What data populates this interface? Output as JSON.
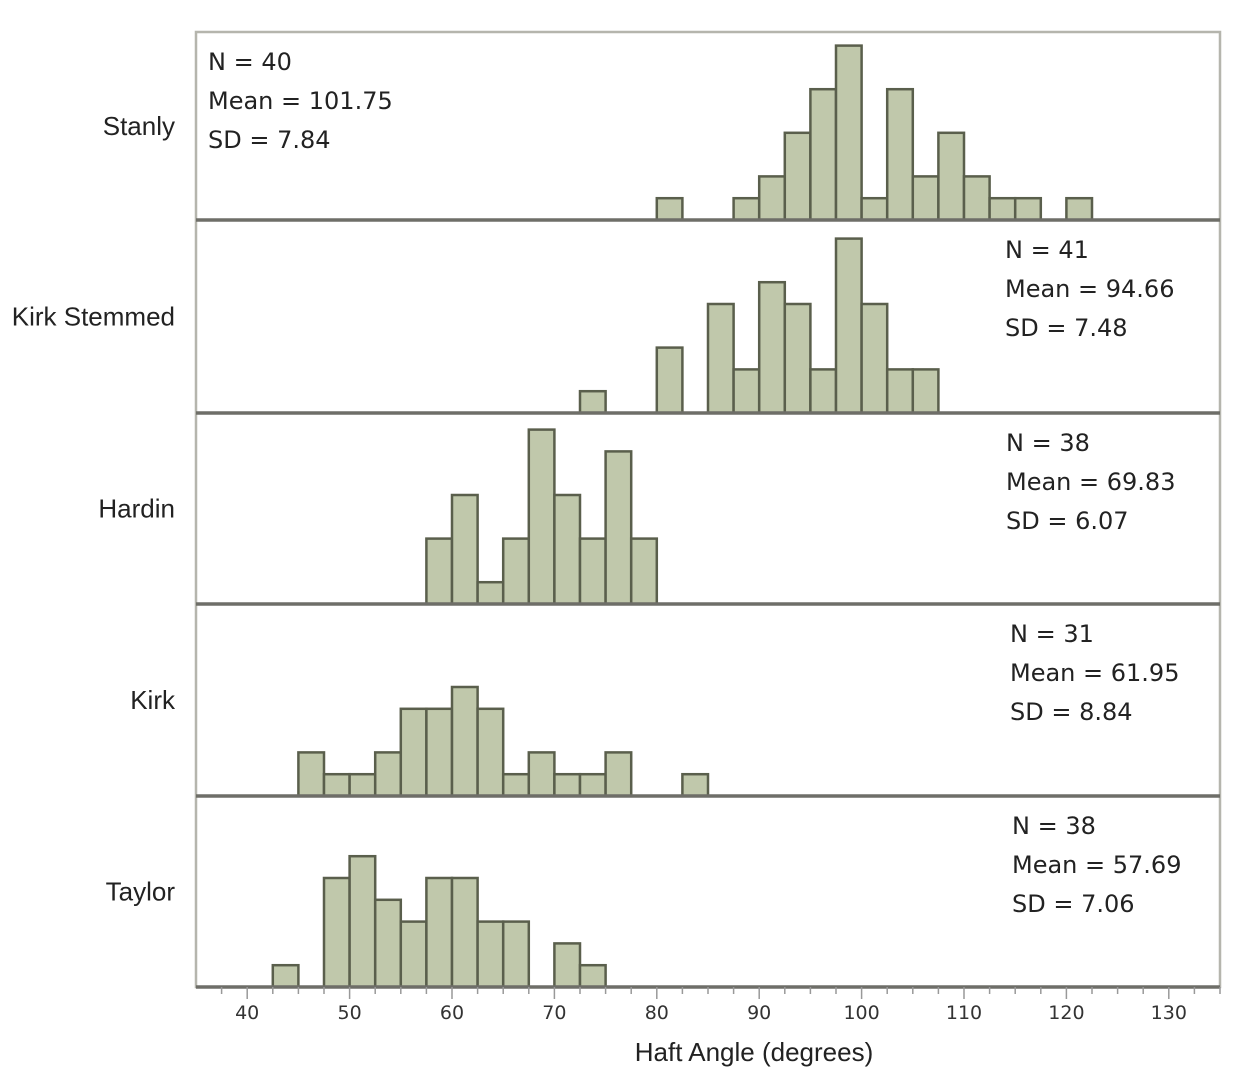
{
  "chart_data": {
    "type": "bar",
    "subtype": "stacked-panel histogram",
    "xlabel": "Haft Angle (degrees)",
    "xlim": [
      35,
      135
    ],
    "bin_width": 2.5,
    "x_ticks": [
      40,
      50,
      60,
      70,
      80,
      90,
      100,
      110,
      120,
      130
    ],
    "bar_color": "#c0c8ab",
    "bar_edge_color": "#5a5f4c",
    "grid": false,
    "panels": [
      {
        "name": "Stanly",
        "stats": [
          "N = 40",
          "Mean = 101.75",
          "SD = 7.84"
        ],
        "stats_position": "top-left",
        "bin_start": [
          80,
          82.5,
          85,
          87.5,
          90,
          92.5,
          95,
          97.5,
          100,
          102.5,
          105,
          107.5,
          110,
          112.5,
          115,
          117.5,
          120
        ],
        "counts": [
          1,
          0,
          0,
          1,
          2,
          4,
          6,
          8,
          1,
          6,
          2,
          4,
          2,
          1,
          1,
          0,
          1
        ]
      },
      {
        "name": "Kirk Stemmed",
        "stats": [
          "N = 41",
          "Mean = 94.66",
          "SD = 7.48"
        ],
        "stats_position": "top-right",
        "bin_start": [
          72.5,
          75,
          77.5,
          80,
          82.5,
          85,
          87.5,
          90,
          92.5,
          95,
          97.5,
          100,
          102.5,
          105
        ],
        "counts": [
          1,
          0,
          0,
          3,
          0,
          5,
          2,
          6,
          5,
          2,
          8,
          5,
          2,
          2
        ]
      },
      {
        "name": "Hardin",
        "stats": [
          "N = 38",
          "Mean = 69.83",
          "SD = 6.07"
        ],
        "stats_position": "top-right",
        "bin_start": [
          57.5,
          60,
          62.5,
          65,
          67.5,
          70,
          72.5,
          75,
          77.5
        ],
        "counts": [
          3,
          5,
          1,
          3,
          8,
          5,
          3,
          7,
          3
        ]
      },
      {
        "name": "Kirk",
        "stats": [
          "N = 31",
          "Mean = 61.95",
          "SD = 8.84"
        ],
        "stats_position": "top-right",
        "bin_start": [
          45,
          47.5,
          50,
          52.5,
          55,
          57.5,
          60,
          62.5,
          65,
          67.5,
          70,
          72.5,
          75,
          77.5,
          80,
          82.5
        ],
        "counts": [
          2,
          1,
          1,
          2,
          4,
          4,
          5,
          4,
          1,
          2,
          1,
          1,
          2,
          0,
          0,
          1
        ]
      },
      {
        "name": "Taylor",
        "stats": [
          "N = 38",
          "Mean = 57.69",
          "SD = 7.06"
        ],
        "stats_position": "top-right",
        "bin_start": [
          42.5,
          45,
          47.5,
          50,
          52.5,
          55,
          57.5,
          60,
          62.5,
          65,
          67.5,
          70,
          72.5
        ],
        "counts": [
          1,
          0,
          5,
          6,
          4,
          3,
          5,
          5,
          3,
          3,
          0,
          2,
          1
        ]
      }
    ]
  }
}
